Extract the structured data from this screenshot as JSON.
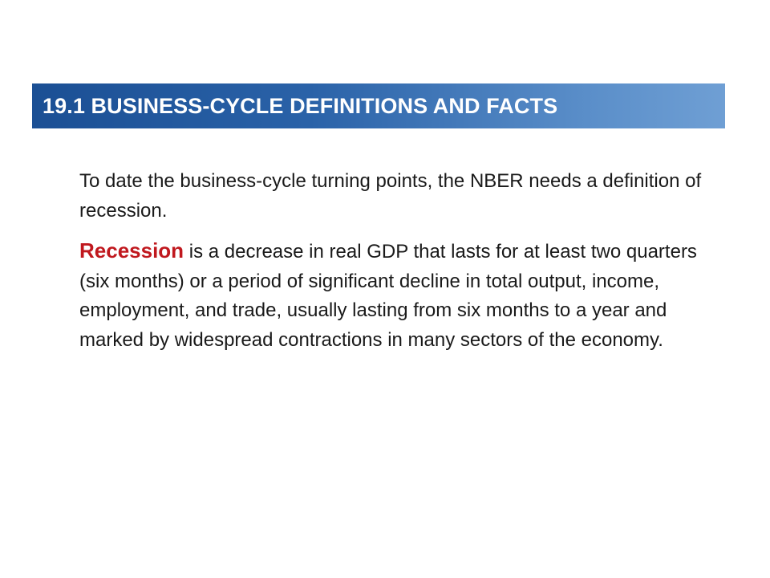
{
  "slide": {
    "title": "19.1 BUSINESS-CYCLE DEFINITIONS AND FACTS",
    "paragraph1": "To date the business-cycle turning points, the NBER needs a definition of recession.",
    "term": "Recession",
    "definition": " is a decrease in real GDP that lasts for at least two quarters (six months) or a period of significant decline in total output, income, employment, and trade, usually lasting from six months to a year and marked by widespread contractions in many sectors of the economy."
  },
  "colors": {
    "title_bar_start": "#1b4f94",
    "title_bar_end": "#6f9fd4",
    "title_text": "#ffffff",
    "term": "#c0181e",
    "body_text": "#1a1a1a"
  }
}
